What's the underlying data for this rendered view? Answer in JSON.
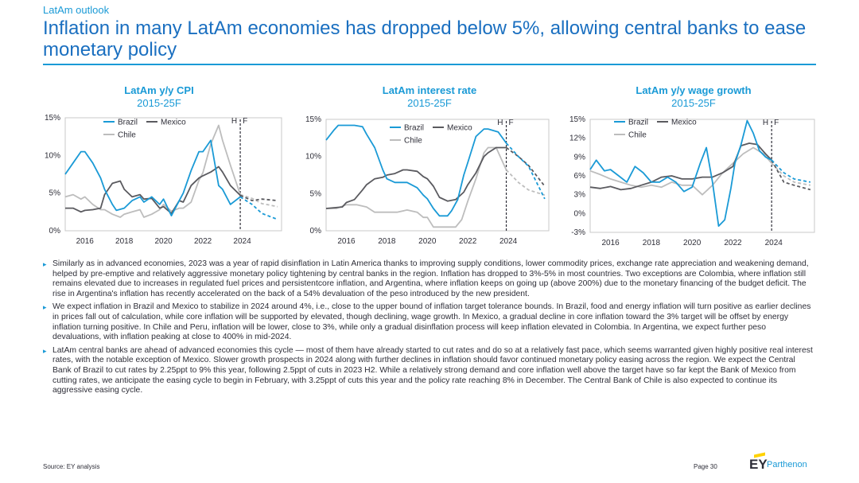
{
  "header": {
    "section": "LatAm outlook",
    "title": "Inflation in many LatAm economies has dropped below 5%, allowing central banks to ease monetary policy"
  },
  "colors": {
    "brazil": "#1a9ad6",
    "mexico": "#5a5a5f",
    "chile": "#bdbdbd",
    "accent": "#1a9ad6"
  },
  "chart_data": [
    {
      "type": "line",
      "title": "LatAm y/y CPI",
      "subtitle": "2015-25F",
      "ylim": [
        0,
        15
      ],
      "yticks": [
        "0%",
        "5%",
        "10%",
        "15%"
      ],
      "xticks": [
        "2016",
        "2018",
        "2020",
        "2022",
        "2024"
      ],
      "xlim": [
        2015,
        2026
      ],
      "forecast_start": 2023.9,
      "forecast_label_h": "H",
      "forecast_label_f": "F",
      "series": [
        {
          "name": "Brazil",
          "color": "#1a9ad6",
          "x": [
            2015.0,
            2015.4,
            2015.8,
            2016.0,
            2016.4,
            2016.8,
            2017.0,
            2017.4,
            2017.6,
            2018.0,
            2018.4,
            2018.8,
            2019.0,
            2019.4,
            2019.8,
            2020.0,
            2020.4,
            2020.8,
            2021.0,
            2021.4,
            2021.8,
            2022.0,
            2022.4,
            2022.8,
            2023.0,
            2023.4,
            2023.9
          ],
          "y": [
            7.5,
            9,
            10.5,
            10.5,
            9,
            7,
            5.5,
            3.5,
            2.7,
            3,
            4,
            4.5,
            3.8,
            4.5,
            3.5,
            4.2,
            2,
            4,
            5,
            8,
            10.5,
            10.5,
            12,
            6,
            5.5,
            3.5,
            4.5
          ],
          "forecast_x": [
            2023.9,
            2024.5,
            2025.0,
            2025.8
          ],
          "forecast_y": [
            4.5,
            3.5,
            2.3,
            1.5
          ]
        },
        {
          "name": "Mexico",
          "color": "#5a5a5f",
          "x": [
            2015.0,
            2015.4,
            2015.8,
            2016.0,
            2016.4,
            2016.8,
            2017.0,
            2017.4,
            2017.8,
            2018.0,
            2018.4,
            2018.8,
            2019.0,
            2019.4,
            2019.8,
            2020.0,
            2020.4,
            2020.8,
            2021.0,
            2021.4,
            2021.8,
            2022.0,
            2022.4,
            2022.8,
            2023.0,
            2023.4,
            2023.9
          ],
          "y": [
            3,
            3,
            2.5,
            2.7,
            2.8,
            3,
            4.8,
            6.3,
            6.6,
            5.5,
            4.5,
            4.8,
            4.2,
            4.3,
            3,
            3.2,
            2.3,
            4,
            3.8,
            6,
            7,
            7.3,
            7.8,
            8.5,
            7.8,
            6,
            4.7
          ],
          "forecast_x": [
            2023.9,
            2024.5,
            2025.0,
            2025.8
          ],
          "forecast_y": [
            4.7,
            4.0,
            4.2,
            4.0
          ]
        },
        {
          "name": "Chile",
          "color": "#bdbdbd",
          "x": [
            2015.0,
            2015.4,
            2015.8,
            2016.0,
            2016.4,
            2016.8,
            2017.0,
            2017.4,
            2017.8,
            2018.0,
            2018.4,
            2018.8,
            2019.0,
            2019.4,
            2019.8,
            2020.0,
            2020.4,
            2020.8,
            2021.0,
            2021.4,
            2021.8,
            2022.0,
            2022.4,
            2022.8,
            2023.0,
            2023.4,
            2023.9
          ],
          "y": [
            4.5,
            4.8,
            4.2,
            4.5,
            3.5,
            2.8,
            2.8,
            2.2,
            1.8,
            2.2,
            2.5,
            2.8,
            1.8,
            2.2,
            2.8,
            3.5,
            2.6,
            3,
            3,
            3.8,
            6.7,
            7.7,
            11.5,
            14,
            12,
            8.7,
            4.8
          ],
          "forecast_x": [
            2023.9,
            2024.5,
            2025.0,
            2025.8
          ],
          "forecast_y": [
            4.8,
            4.3,
            3.6,
            3.2
          ]
        }
      ]
    },
    {
      "type": "line",
      "title": "LatAm interest rate",
      "subtitle": "2015-25F",
      "ylim": [
        0,
        15
      ],
      "yticks": [
        "0%",
        "5%",
        "10%",
        "15%"
      ],
      "xticks": [
        "2016",
        "2018",
        "2020",
        "2022",
        "2024"
      ],
      "xlim": [
        2015,
        2026
      ],
      "forecast_start": 2023.9,
      "forecast_label_h": "H",
      "forecast_label_f": "F",
      "series": [
        {
          "name": "Brazil",
          "color": "#1a9ad6",
          "x": [
            2015.0,
            2015.4,
            2015.6,
            2016.0,
            2016.4,
            2016.8,
            2017.0,
            2017.4,
            2017.8,
            2018.0,
            2018.4,
            2019.0,
            2019.5,
            2019.8,
            2020.0,
            2020.3,
            2020.6,
            2021.0,
            2021.2,
            2021.5,
            2021.8,
            2022.0,
            2022.4,
            2022.8,
            2023.0,
            2023.5,
            2023.9
          ],
          "y": [
            12.2,
            13.6,
            14.2,
            14.2,
            14.2,
            14.0,
            13.0,
            11.2,
            8.2,
            7,
            6.5,
            6.5,
            5.8,
            4.8,
            4.3,
            3.0,
            2.0,
            2.0,
            2.7,
            4.2,
            7.5,
            9.2,
            12.7,
            13.7,
            13.7,
            13.3,
            11.8
          ],
          "forecast_x": [
            2023.9,
            2024.5,
            2025.0,
            2025.8
          ],
          "forecast_y": [
            11.8,
            10.0,
            8.7,
            4.3
          ]
        },
        {
          "name": "Mexico",
          "color": "#5a5a5f",
          "x": [
            2015.0,
            2015.8,
            2016.0,
            2016.4,
            2016.8,
            2017.0,
            2017.4,
            2017.8,
            2018.0,
            2018.4,
            2018.8,
            2019.0,
            2019.5,
            2019.8,
            2020.0,
            2020.3,
            2020.6,
            2021.0,
            2021.4,
            2021.8,
            2022.0,
            2022.4,
            2022.8,
            2023.0,
            2023.4,
            2023.9
          ],
          "y": [
            3,
            3.2,
            3.8,
            4.2,
            5.5,
            6.2,
            7,
            7.2,
            7.5,
            7.7,
            8.2,
            8.2,
            8.0,
            7.3,
            7,
            6,
            4.5,
            4,
            4.2,
            5.2,
            6.2,
            7.8,
            10,
            10.5,
            11.2,
            11.2
          ],
          "forecast_x": [
            2023.9,
            2024.5,
            2025.0,
            2025.8
          ],
          "forecast_y": [
            11.2,
            10.0,
            8.8,
            6.0
          ]
        },
        {
          "name": "Chile",
          "color": "#bdbdbd",
          "x": [
            2015.0,
            2015.5,
            2016.0,
            2016.5,
            2017.0,
            2017.4,
            2017.8,
            2018.5,
            2019.0,
            2019.5,
            2019.8,
            2020.0,
            2020.3,
            2021.0,
            2021.4,
            2021.7,
            2022.0,
            2022.4,
            2022.8,
            2023.0,
            2023.4,
            2023.9
          ],
          "y": [
            3,
            3.0,
            3.5,
            3.5,
            3.2,
            2.5,
            2.5,
            2.5,
            2.8,
            2.5,
            1.8,
            1.8,
            0.5,
            0.5,
            0.5,
            1.5,
            4,
            7,
            10.5,
            11.2,
            11.2,
            8.2
          ],
          "forecast_x": [
            2023.9,
            2024.5,
            2025.0,
            2025.8
          ],
          "forecast_y": [
            8.2,
            6.5,
            5.5,
            4.8
          ]
        }
      ]
    },
    {
      "type": "line",
      "title": "LatAm y/y wage growth",
      "subtitle": "2015-25F",
      "ylim": [
        -3,
        15
      ],
      "yticks": [
        "-3%",
        "0%",
        "3%",
        "6%",
        "9%",
        "12%",
        "15%"
      ],
      "xticks": [
        "2016",
        "2018",
        "2020",
        "2022",
        "2024"
      ],
      "xlim": [
        2015,
        2026
      ],
      "forecast_start": 2023.9,
      "forecast_label_h": "H",
      "forecast_label_f": "F",
      "series": [
        {
          "name": "Brazil",
          "color": "#1a9ad6",
          "x": [
            2015.0,
            2015.3,
            2015.7,
            2016.0,
            2016.4,
            2016.8,
            2017.2,
            2017.6,
            2018.0,
            2018.4,
            2018.8,
            2019.2,
            2019.6,
            2020.0,
            2020.4,
            2020.7,
            2021.0,
            2021.3,
            2021.6,
            2021.9,
            2022.1,
            2022.4,
            2022.7,
            2023.0,
            2023.3,
            2023.6,
            2023.9
          ],
          "y": [
            7,
            8.5,
            6.8,
            7,
            6,
            5,
            7.5,
            6.5,
            5,
            5,
            5.8,
            5,
            3.5,
            4.2,
            8,
            10.5,
            5,
            -2,
            -1,
            4,
            8,
            11,
            14.8,
            12.8,
            10,
            9,
            8.5
          ],
          "forecast_x": [
            2023.9,
            2024.5,
            2025.0,
            2025.8
          ],
          "forecast_y": [
            8.5,
            6.5,
            5.5,
            5.0
          ]
        },
        {
          "name": "Mexico",
          "color": "#5a5a5f",
          "x": [
            2015.0,
            2015.5,
            2016.0,
            2016.5,
            2017.0,
            2017.5,
            2018.0,
            2018.5,
            2019.0,
            2019.5,
            2020.0,
            2020.5,
            2021.0,
            2021.5,
            2022.0,
            2022.4,
            2022.8,
            2023.2,
            2023.6,
            2023.9
          ],
          "y": [
            4.2,
            4.0,
            4.3,
            3.8,
            4.0,
            4.5,
            5,
            5.8,
            6,
            5.5,
            5.5,
            5.8,
            5.8,
            6.5,
            7.5,
            10.8,
            11.2,
            11.0,
            9.5,
            8.5
          ],
          "forecast_x": [
            2023.9,
            2024.5,
            2025.0,
            2025.8
          ],
          "forecast_y": [
            8.5,
            5.0,
            4.5,
            3.8
          ]
        },
        {
          "name": "Chile",
          "color": "#bdbdbd",
          "x": [
            2015.0,
            2015.5,
            2016.0,
            2016.5,
            2017.0,
            2017.5,
            2018.0,
            2018.5,
            2019.0,
            2019.5,
            2020.0,
            2020.5,
            2021.0,
            2021.5,
            2022.0,
            2022.5,
            2023.0,
            2023.5,
            2023.9
          ],
          "y": [
            6.8,
            6.2,
            5.5,
            5,
            4.5,
            4.2,
            4.5,
            4.2,
            5,
            4.5,
            4.5,
            3.0,
            4.5,
            6.5,
            8.0,
            9.5,
            10.5,
            9.5,
            8.0
          ],
          "forecast_x": [
            2023.9,
            2024.5,
            2025.0,
            2025.8
          ],
          "forecast_y": [
            8.0,
            6.0,
            5.0,
            4.5
          ]
        }
      ]
    }
  ],
  "bullets": [
    "Similarly as in advanced economies, 2023 was a year of rapid disinflation in Latin America thanks to improving supply conditions, lower commodity prices, exchange rate appreciation and weakening demand, helped by pre-emptive and relatively aggressive monetary policy tightening by central banks in the region. Inflation has dropped to 3%-5% in most countries. Two exceptions are Colombia, where inflation still remains elevated due to increases in regulated fuel prices and persistentcore inflation, and Argentina, where inflation keeps on going up (above 200%) due to the monetary financing of the budget deficit. The rise in Argentina's inflation has recently accelerated on the back of a 54% devaluation of the peso introduced by the new president.",
    "We expect inflation in Brazil and Mexico to stabilize in 2024 around 4%, i.e., close to the upper bound of inflation target tolerance bounds. In Brazil, food and energy inflation will turn positive as earlier declines in prices fall out of calculation, while core inflation will be supported by elevated, though declining, wage growth. In Mexico, a gradual decline in core inflation toward the 3% target will be offset by energy inflation turning positive. In Chile and Peru, inflation will be lower, close to 3%, while only a gradual disinflation process will keep inflation elevated in Colombia. In Argentina, we expect further peso devaluations, with inflation peaking at close to 400% in mid-2024.",
    "LatAm central banks are ahead of advanced economies this cycle — most of them have already started to cut rates and do so at a relatively fast pace, which seems warranted given highly positive real interest rates, with the notable exception of Mexico. Slower growth prospects in 2024 along with further declines in inflation should favor continued monetary policy easing across the region. We expect the Central Bank of Brazil to cut rates by 2.25ppt to 9% this year, following 2.5ppt of cuts in 2023 H2. While a relatively strong demand and core inflation well above the target have so far kept the Bank of Mexico from cutting rates, we anticipate the easing cycle to begin in February, with 3.25ppt of cuts this year and the policy rate reaching 8% in December. The Central Bank of Chile is also expected to continue its aggressive easing cycle."
  ],
  "footer": {
    "source": "Source: EY analysis",
    "page": "Page 30",
    "logo_ey": "EY",
    "logo_parthenon": "Parthenon"
  }
}
